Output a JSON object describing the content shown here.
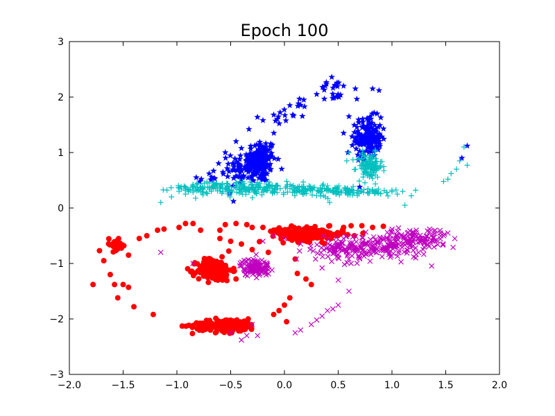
{
  "chart_data": {
    "type": "scatter",
    "title": "Epoch 100",
    "xlabel": "",
    "ylabel": "",
    "xlim": [
      -2.0,
      2.0
    ],
    "ylim": [
      -3,
      3
    ],
    "x_ticks": [
      "−2.0",
      "−1.5",
      "−1.0",
      "−0.5",
      "0.0",
      "0.5",
      "1.0",
      "1.5",
      "2.0"
    ],
    "y_ticks": [
      "−3",
      "−2",
      "−1",
      "0",
      "1",
      "2",
      "3"
    ],
    "grid": false,
    "legend": "none",
    "series": [
      {
        "marker": "star",
        "color": "#0000ff",
        "clusters": [
          {
            "cx": -0.22,
            "cy": 0.85,
            "sx": 0.07,
            "sy": 0.2,
            "n": 140
          },
          {
            "cx": -0.35,
            "cy": 0.75,
            "sx": 0.08,
            "sy": 0.15,
            "n": 70
          },
          {
            "cx": 0.78,
            "cy": 1.28,
            "sx": 0.06,
            "sy": 0.18,
            "n": 160
          },
          {
            "cx": -0.6,
            "cy": 0.55,
            "sx": 0.1,
            "sy": 0.1,
            "n": 20
          },
          {
            "cx": 0.45,
            "cy": 2.1,
            "sx": 0.08,
            "sy": 0.12,
            "n": 18
          },
          {
            "cx": 0.0,
            "cy": 1.7,
            "sx": 0.12,
            "sy": 0.15,
            "n": 18
          }
        ],
        "points": [
          [
            -0.82,
            0.55
          ],
          [
            -0.7,
            0.62
          ],
          [
            -0.55,
            1.0
          ],
          [
            -0.45,
            1.2
          ],
          [
            -0.33,
            1.42
          ],
          [
            -0.2,
            1.58
          ],
          [
            -0.1,
            1.68
          ],
          [
            0.05,
            1.85
          ],
          [
            0.18,
            1.95
          ],
          [
            0.3,
            2.05
          ],
          [
            0.38,
            2.2
          ],
          [
            0.44,
            2.36
          ],
          [
            0.55,
            2.2
          ],
          [
            0.66,
            2.15
          ],
          [
            0.82,
            2.15
          ],
          [
            0.88,
            2.12
          ],
          [
            0.6,
            1.65
          ],
          [
            0.55,
            1.35
          ],
          [
            0.59,
            1.0
          ],
          [
            1.7,
            1.12
          ],
          [
            1.65,
            0.9
          ],
          [
            0.7,
            0.38
          ]
        ]
      },
      {
        "marker": "plus",
        "color": "#00bfbf",
        "clusters": [
          {
            "cx": -0.3,
            "cy": 0.35,
            "sx": 0.22,
            "sy": 0.06,
            "n": 150
          },
          {
            "cx": -0.75,
            "cy": 0.37,
            "sx": 0.15,
            "sy": 0.05,
            "n": 60
          },
          {
            "cx": 0.2,
            "cy": 0.32,
            "sx": 0.15,
            "sy": 0.05,
            "n": 70
          },
          {
            "cx": 0.55,
            "cy": 0.3,
            "sx": 0.12,
            "sy": 0.04,
            "n": 50
          },
          {
            "cx": 0.79,
            "cy": 0.75,
            "sx": 0.06,
            "sy": 0.12,
            "n": 110
          },
          {
            "cx": 0.86,
            "cy": 0.3,
            "sx": 0.08,
            "sy": 0.04,
            "n": 25
          }
        ],
        "points": [
          [
            -1.15,
            0.1
          ],
          [
            -1.05,
            0.2
          ],
          [
            -0.98,
            0.3
          ],
          [
            -0.92,
            0.25
          ],
          [
            0.38,
            0.2
          ],
          [
            0.42,
            0.1
          ],
          [
            0.48,
            0.25
          ],
          [
            0.58,
            0.85
          ],
          [
            0.6,
            1.0
          ],
          [
            0.95,
            0.28
          ],
          [
            1.0,
            0.32
          ],
          [
            1.05,
            0.25
          ],
          [
            1.1,
            0.3
          ],
          [
            1.12,
            0.05
          ],
          [
            1.18,
            0.22
          ],
          [
            1.22,
            0.32
          ],
          [
            1.48,
            0.48
          ],
          [
            1.52,
            0.52
          ],
          [
            1.55,
            0.62
          ],
          [
            1.6,
            0.7
          ],
          [
            1.63,
            0.85
          ],
          [
            1.67,
            1.1
          ],
          [
            1.7,
            0.77
          ]
        ]
      },
      {
        "marker": "circle",
        "color": "#ff0000",
        "clusters": [
          {
            "cx": -0.65,
            "cy": -1.12,
            "sx": 0.08,
            "sy": 0.1,
            "n": 170
          },
          {
            "cx": -0.55,
            "cy": -2.12,
            "sx": 0.15,
            "sy": 0.06,
            "n": 140
          },
          {
            "cx": 0.25,
            "cy": -0.48,
            "sx": 0.15,
            "sy": 0.06,
            "n": 150
          },
          {
            "cx": 0.05,
            "cy": -0.45,
            "sx": 0.08,
            "sy": 0.05,
            "n": 40
          },
          {
            "cx": -1.57,
            "cy": -0.65,
            "sx": 0.05,
            "sy": 0.06,
            "n": 22
          }
        ],
        "points": [
          [
            -1.78,
            -1.38
          ],
          [
            -1.72,
            -0.77
          ],
          [
            -1.68,
            -0.95
          ],
          [
            -1.62,
            -1.2
          ],
          [
            -1.58,
            -1.38
          ],
          [
            -1.55,
            -1.62
          ],
          [
            -1.5,
            -1.38
          ],
          [
            -1.45,
            -1.43
          ],
          [
            -1.4,
            -1.78
          ],
          [
            -1.22,
            -1.92
          ],
          [
            -1.45,
            -0.85
          ],
          [
            -1.35,
            -0.55
          ],
          [
            -1.28,
            -0.5
          ],
          [
            -1.18,
            -0.4
          ],
          [
            -1.12,
            -0.38
          ],
          [
            -0.98,
            -0.35
          ],
          [
            -0.92,
            -0.28
          ],
          [
            -0.85,
            -0.28
          ],
          [
            -0.78,
            -0.4
          ],
          [
            -0.6,
            -0.4
          ],
          [
            -0.55,
            -0.3
          ],
          [
            -0.45,
            -0.28
          ],
          [
            -0.35,
            -0.3
          ],
          [
            -0.3,
            -0.35
          ],
          [
            -0.2,
            -0.35
          ],
          [
            -0.1,
            -0.4
          ],
          [
            -0.6,
            -0.55
          ],
          [
            -0.5,
            -0.6
          ],
          [
            -0.4,
            -0.65
          ],
          [
            -0.3,
            -0.75
          ],
          [
            -0.15,
            -0.8
          ],
          [
            0.1,
            -0.92
          ],
          [
            0.12,
            -1.18
          ],
          [
            0.2,
            -1.28
          ],
          [
            0.25,
            -1.38
          ],
          [
            0.05,
            -1.62
          ],
          [
            0.0,
            -1.75
          ],
          [
            -0.05,
            -1.85
          ],
          [
            -0.1,
            -1.92
          ],
          [
            0.02,
            -2.05
          ],
          [
            0.55,
            -0.35
          ],
          [
            0.62,
            -0.32
          ],
          [
            0.72,
            -0.32
          ],
          [
            0.82,
            -0.35
          ],
          [
            0.92,
            -0.33
          ],
          [
            0.65,
            -0.5
          ],
          [
            0.42,
            -0.32
          ],
          [
            -0.72,
            -0.92
          ],
          [
            -0.58,
            -0.88
          ],
          [
            -0.45,
            -1.28
          ]
        ]
      },
      {
        "marker": "x",
        "color": "#bf00bf",
        "clusters": [
          {
            "cx": 0.85,
            "cy": -0.7,
            "sx": 0.25,
            "sy": 0.12,
            "n": 180
          },
          {
            "cx": 1.2,
            "cy": -0.55,
            "sx": 0.15,
            "sy": 0.08,
            "n": 90
          },
          {
            "cx": 0.5,
            "cy": -0.75,
            "sx": 0.12,
            "sy": 0.1,
            "n": 50
          },
          {
            "cx": -0.27,
            "cy": -1.07,
            "sx": 0.07,
            "sy": 0.08,
            "n": 110
          }
        ],
        "points": [
          [
            -1.15,
            -0.8
          ],
          [
            -0.85,
            -1.0
          ],
          [
            -0.5,
            -2.25
          ],
          [
            -0.4,
            -2.38
          ],
          [
            -0.35,
            -2.3
          ],
          [
            -0.25,
            -2.3
          ],
          [
            -0.3,
            -2.1
          ],
          [
            0.1,
            -2.25
          ],
          [
            0.15,
            -2.2
          ],
          [
            0.25,
            -2.1
          ],
          [
            0.3,
            -2.02
          ],
          [
            0.35,
            -1.95
          ],
          [
            0.4,
            -1.85
          ],
          [
            0.45,
            -1.82
          ],
          [
            0.5,
            -1.75
          ],
          [
            0.35,
            -1.08
          ],
          [
            0.5,
            -1.3
          ],
          [
            0.6,
            -1.5
          ],
          [
            -0.2,
            -0.6
          ],
          [
            -0.1,
            -0.5
          ],
          [
            0.0,
            -0.55
          ],
          [
            0.15,
            -0.65
          ],
          [
            0.55,
            -0.55
          ],
          [
            1.45,
            -0.45
          ],
          [
            1.48,
            -0.5
          ],
          [
            1.52,
            -0.45
          ],
          [
            1.4,
            -0.4
          ],
          [
            1.35,
            -0.38
          ],
          [
            0.62,
            -1.0
          ],
          [
            0.7,
            -0.9
          ]
        ]
      }
    ]
  }
}
